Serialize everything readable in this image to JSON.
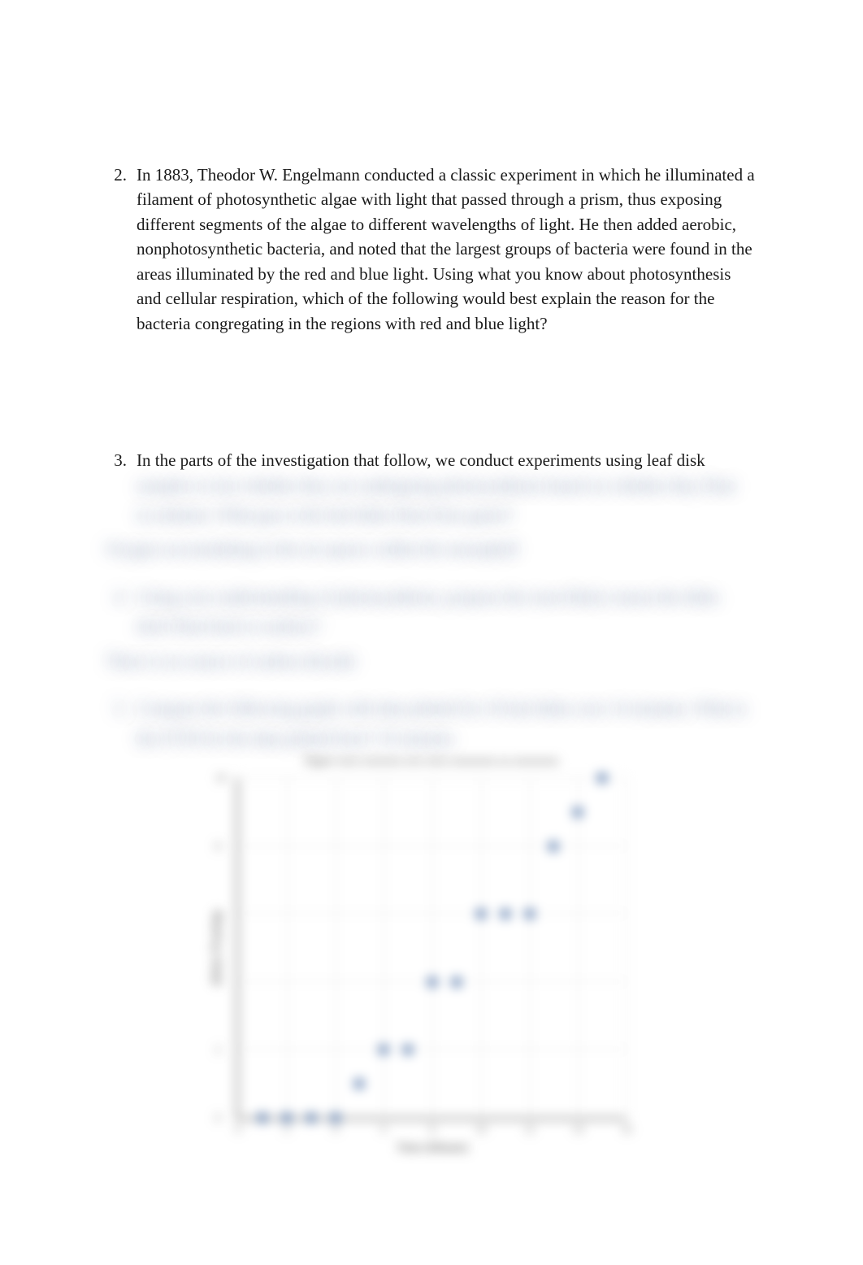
{
  "questions": {
    "q2": {
      "number": "2.",
      "text": "In 1883, Theodor W. Engelmann conducted a classic experiment in which he illuminated a filament of photosynthetic algae with light that passed through a prism, thus exposing different segments of the algae to different wavelengths of light. He then added aerobic, nonphotosynthetic bacteria, and noted that the largest groups of bacteria were found in the areas illuminated by the red and blue light. Using what you know about photosynthesis and cellular respiration, which of the following would best explain the reason for the bacteria congregating in the regions with red and blue light?"
    },
    "q3": {
      "number": "3.",
      "visible": "In the parts of the investigation that follow, we conduct experiments using leaf disk",
      "obscured_lines": [
        "samples to test whether they are undergoing photosynthesis based on whether they float",
        "in solution. What gas is the leaf disks float from gases?"
      ]
    },
    "a3": "Oxygen accumulating in the air spaces within the mesophyll",
    "q4": {
      "number": "4.",
      "obscured_lines": [
        "Using your understanding of photosynthesis, propose the most likely reason the disks",
        "don't float back to surface?"
      ]
    },
    "a4": "There is no source of carbon dioxide",
    "q5": {
      "number": "5.",
      "obscured_lines": [
        "Compare the following graph with data plotted for 10 leaf disks over 14 minutes. What is",
        "the ET50 for the data plotted here? 10 minutes"
      ]
    }
  },
  "chart": {
    "type": "scatter",
    "title": "Figure xxxx xxxxxxx xxx xxxx xxxxxxxx xx xxxxxxxx",
    "xlabel": "Time (Minute)",
    "ylabel": "Disks Floating",
    "xlim": [
      0,
      16
    ],
    "ylim": [
      0,
      10
    ],
    "xticks": [
      0,
      2,
      4,
      6,
      8,
      10,
      12,
      14,
      16
    ],
    "yticks": [
      0,
      2,
      4,
      6,
      8,
      10
    ],
    "grid_color": "#e0e0e0",
    "point_color": "#4a6fa5",
    "point_radius": 6,
    "background_color": "#ffffff",
    "axis_color": "#555555",
    "label_fontsize": 15,
    "tick_fontsize": 13,
    "points": [
      {
        "x": 1,
        "y": 0
      },
      {
        "x": 2,
        "y": 0
      },
      {
        "x": 3,
        "y": 0
      },
      {
        "x": 4,
        "y": 0
      },
      {
        "x": 5,
        "y": 1
      },
      {
        "x": 6,
        "y": 2
      },
      {
        "x": 7,
        "y": 2
      },
      {
        "x": 8,
        "y": 4
      },
      {
        "x": 9,
        "y": 4
      },
      {
        "x": 10,
        "y": 6
      },
      {
        "x": 11,
        "y": 6
      },
      {
        "x": 12,
        "y": 6
      },
      {
        "x": 13,
        "y": 8
      },
      {
        "x": 14,
        "y": 9
      },
      {
        "x": 15,
        "y": 10
      }
    ]
  }
}
